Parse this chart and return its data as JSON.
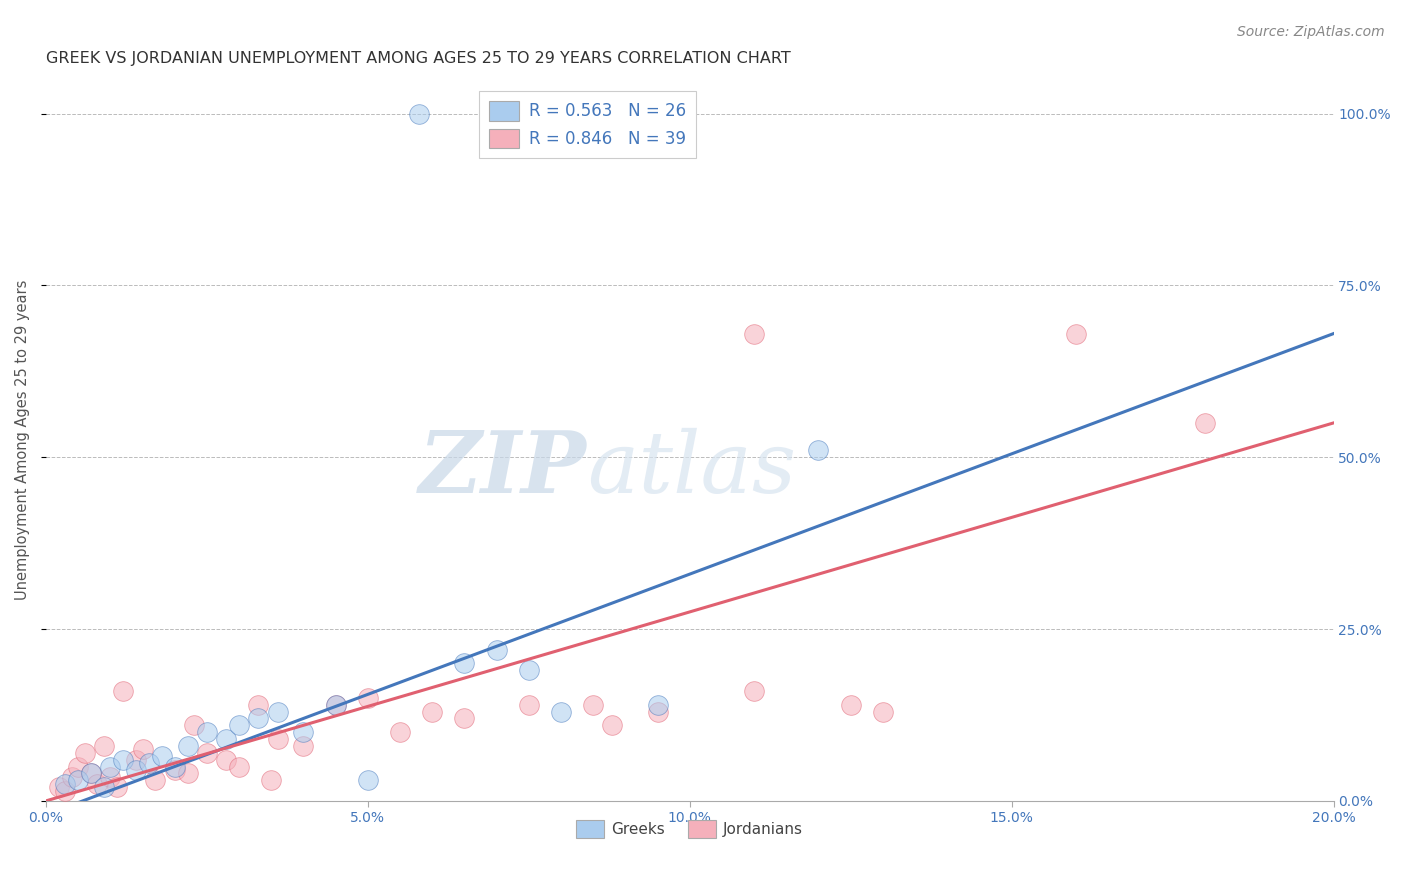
{
  "title": "GREEK VS JORDANIAN UNEMPLOYMENT AMONG AGES 25 TO 29 YEARS CORRELATION CHART",
  "source": "Source: ZipAtlas.com",
  "ylabel": "Unemployment Among Ages 25 to 29 years",
  "x_tick_labels": [
    "0.0%",
    "5.0%",
    "10.0%",
    "15.0%",
    "20.0%"
  ],
  "x_tick_values": [
    0.0,
    5.0,
    10.0,
    15.0,
    20.0
  ],
  "y_tick_labels": [
    "100.0%",
    "75.0%",
    "50.0%",
    "25.0%",
    "0.0%"
  ],
  "y_tick_values": [
    100.0,
    75.0,
    50.0,
    25.0,
    0.0
  ],
  "xlim": [
    0,
    20
  ],
  "ylim": [
    0,
    105
  ],
  "legend_entries": [
    {
      "label": "R = 0.563   N = 26",
      "color": "#4477bb"
    },
    {
      "label": "R = 0.846   N = 39",
      "color": "#4477bb"
    }
  ],
  "legend_bottom": [
    "Greeks",
    "Jordanians"
  ],
  "blue_scatter": [
    [
      0.3,
      2.5
    ],
    [
      0.5,
      3.0
    ],
    [
      0.7,
      4.0
    ],
    [
      0.9,
      2.0
    ],
    [
      1.0,
      5.0
    ],
    [
      1.2,
      6.0
    ],
    [
      1.4,
      4.5
    ],
    [
      1.6,
      5.5
    ],
    [
      1.8,
      6.5
    ],
    [
      2.0,
      5.0
    ],
    [
      2.2,
      8.0
    ],
    [
      2.5,
      10.0
    ],
    [
      2.8,
      9.0
    ],
    [
      3.0,
      11.0
    ],
    [
      3.3,
      12.0
    ],
    [
      3.6,
      13.0
    ],
    [
      4.0,
      10.0
    ],
    [
      4.5,
      14.0
    ],
    [
      5.0,
      3.0
    ],
    [
      6.5,
      20.0
    ],
    [
      7.0,
      22.0
    ],
    [
      7.5,
      19.0
    ],
    [
      8.0,
      13.0
    ],
    [
      9.5,
      14.0
    ],
    [
      12.0,
      51.0
    ],
    [
      5.8,
      100.0
    ]
  ],
  "pink_scatter": [
    [
      0.2,
      2.0
    ],
    [
      0.3,
      1.5
    ],
    [
      0.4,
      3.5
    ],
    [
      0.5,
      5.0
    ],
    [
      0.6,
      7.0
    ],
    [
      0.7,
      4.0
    ],
    [
      0.8,
      2.5
    ],
    [
      0.9,
      8.0
    ],
    [
      1.0,
      3.5
    ],
    [
      1.1,
      2.0
    ],
    [
      1.2,
      16.0
    ],
    [
      1.4,
      6.0
    ],
    [
      1.5,
      7.5
    ],
    [
      1.7,
      3.0
    ],
    [
      2.0,
      4.5
    ],
    [
      2.3,
      11.0
    ],
    [
      2.5,
      7.0
    ],
    [
      2.8,
      6.0
    ],
    [
      3.0,
      5.0
    ],
    [
      3.3,
      14.0
    ],
    [
      3.6,
      9.0
    ],
    [
      4.0,
      8.0
    ],
    [
      4.5,
      14.0
    ],
    [
      5.0,
      15.0
    ],
    [
      5.5,
      10.0
    ],
    [
      6.0,
      13.0
    ],
    [
      6.5,
      12.0
    ],
    [
      7.5,
      14.0
    ],
    [
      8.5,
      14.0
    ],
    [
      8.8,
      11.0
    ],
    [
      9.5,
      13.0
    ],
    [
      11.0,
      16.0
    ],
    [
      12.5,
      14.0
    ],
    [
      13.0,
      13.0
    ],
    [
      11.0,
      68.0
    ],
    [
      16.0,
      68.0
    ],
    [
      18.0,
      55.0
    ],
    [
      3.5,
      3.0
    ],
    [
      2.2,
      4.0
    ]
  ],
  "blue_line_x": [
    0,
    20
  ],
  "blue_line_y": [
    -2,
    68
  ],
  "pink_line_x": [
    0,
    20
  ],
  "pink_line_y": [
    0,
    55
  ],
  "blue_color": "#4477bb",
  "pink_color": "#e06070",
  "scatter_blue_color": "#aaccee",
  "scatter_pink_color": "#f5b0bb",
  "scatter_size": 200,
  "scatter_alpha": 0.55,
  "watermark_zip": "ZIP",
  "watermark_atlas": "atlas",
  "grid_color": "#bbbbbb",
  "title_fontsize": 11.5,
  "axis_label_fontsize": 10.5,
  "tick_fontsize": 10,
  "source_fontsize": 10,
  "tick_color": "#4477bb"
}
